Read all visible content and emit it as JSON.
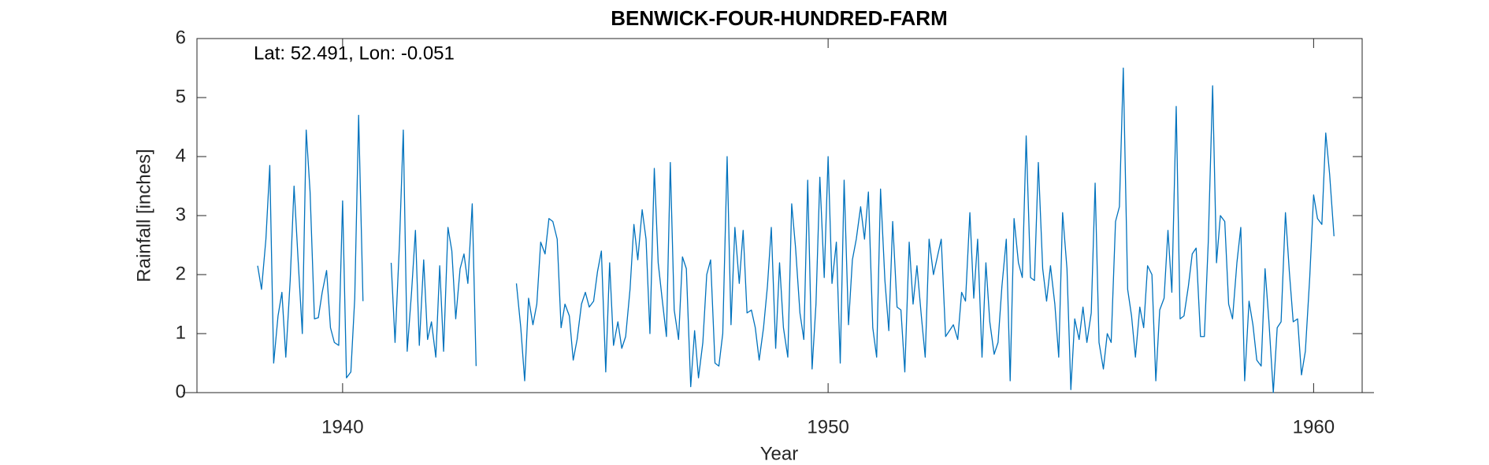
{
  "chart_data": {
    "type": "line",
    "title": "BENWICK-FOUR-HUNDRED-FARM",
    "annotation": "Lat: 52.491, Lon: -0.051",
    "xlabel": "Year",
    "ylabel": "Rainfall [inches]",
    "color": "#0072BD",
    "xlim": [
      1937,
      1961
    ],
    "xticks": [
      1940,
      1950,
      1960
    ],
    "ylim": [
      0,
      6
    ],
    "yticks": [
      0,
      1,
      2,
      3,
      4,
      5,
      6
    ],
    "x": [
      1938.25,
      1938.33,
      1938.42,
      1938.5,
      1938.58,
      1938.67,
      1938.75,
      1938.83,
      1938.92,
      1939,
      1939.08,
      1939.17,
      1939.25,
      1939.33,
      1939.42,
      1939.5,
      1939.58,
      1939.67,
      1939.75,
      1939.83,
      1939.92,
      1940,
      1940.08,
      1940.17,
      1940.25,
      1940.33,
      1940.42,
      1940.5,
      1940.58,
      1940.67,
      1940.75,
      1940.83,
      1940.92,
      1941,
      1941.08,
      1941.17,
      1941.25,
      1941.33,
      1941.42,
      1941.5,
      1941.58,
      1941.67,
      1941.75,
      1941.83,
      1941.92,
      1942,
      1942.08,
      1942.17,
      1942.25,
      1942.33,
      1942.42,
      1942.5,
      1942.58,
      1942.67,
      1942.75,
      1942.83,
      1942.92,
      1943,
      1943.08,
      1943.17,
      1943.25,
      1943.33,
      1943.42,
      1943.5,
      1943.58,
      1943.67,
      1943.75,
      1943.83,
      1943.92,
      1944,
      1944.08,
      1944.17,
      1944.25,
      1944.33,
      1944.42,
      1944.5,
      1944.58,
      1944.67,
      1944.75,
      1944.83,
      1944.92,
      1945,
      1945.08,
      1945.17,
      1945.25,
      1945.33,
      1945.42,
      1945.5,
      1945.58,
      1945.67,
      1945.75,
      1945.83,
      1945.92,
      1946,
      1946.08,
      1946.17,
      1946.25,
      1946.33,
      1946.42,
      1946.5,
      1946.58,
      1946.67,
      1946.75,
      1946.83,
      1946.92,
      1947,
      1947.08,
      1947.17,
      1947.25,
      1947.33,
      1947.42,
      1947.5,
      1947.58,
      1947.67,
      1947.75,
      1947.83,
      1947.92,
      1948,
      1948.08,
      1948.17,
      1948.25,
      1948.33,
      1948.42,
      1948.5,
      1948.58,
      1948.67,
      1948.75,
      1948.83,
      1948.92,
      1949,
      1949.08,
      1949.17,
      1949.25,
      1949.33,
      1949.42,
      1949.5,
      1949.58,
      1949.67,
      1949.75,
      1949.83,
      1949.92,
      1950,
      1950.08,
      1950.17,
      1950.25,
      1950.33,
      1950.42,
      1950.5,
      1950.58,
      1950.67,
      1950.75,
      1950.83,
      1950.92,
      1951,
      1951.08,
      1951.17,
      1951.25,
      1951.33,
      1951.42,
      1951.5,
      1951.58,
      1951.67,
      1951.75,
      1951.83,
      1951.92,
      1952,
      1952.08,
      1952.17,
      1952.25,
      1952.33,
      1952.42,
      1952.5,
      1952.58,
      1952.67,
      1952.75,
      1952.83,
      1952.92,
      1953,
      1953.08,
      1953.17,
      1953.25,
      1953.33,
      1953.42,
      1953.5,
      1953.58,
      1953.67,
      1953.75,
      1953.83,
      1953.92,
      1954,
      1954.08,
      1954.17,
      1954.25,
      1954.33,
      1954.42,
      1954.5,
      1954.58,
      1954.67,
      1954.75,
      1954.83,
      1954.92,
      1955,
      1955.08,
      1955.17,
      1955.25,
      1955.33,
      1955.42,
      1955.5,
      1955.58,
      1955.67,
      1955.75,
      1955.83,
      1955.92,
      1956,
      1956.08,
      1956.17,
      1956.25,
      1956.33,
      1956.42,
      1956.5,
      1956.58,
      1956.67,
      1956.75,
      1956.83,
      1956.92,
      1957,
      1957.08,
      1957.17,
      1957.25,
      1957.33,
      1957.42,
      1957.5,
      1957.58,
      1957.67,
      1957.75,
      1957.83,
      1957.92,
      1958,
      1958.08,
      1958.17,
      1958.25,
      1958.33,
      1958.42,
      1958.5,
      1958.58,
      1958.67,
      1958.75,
      1958.83,
      1958.92,
      1959,
      1959.08,
      1959.17,
      1959.25,
      1959.33,
      1959.42,
      1959.5,
      1959.58,
      1959.67,
      1959.75,
      1959.83,
      1959.92,
      1960,
      1960.08,
      1960.17,
      1960.25,
      1960.33,
      1960.42
    ],
    "values": [
      2.15,
      1.75,
      2.6,
      3.85,
      0.5,
      1.3,
      1.7,
      0.6,
      1.9,
      3.5,
      2.3,
      1.0,
      4.45,
      3.4,
      1.25,
      1.27,
      1.7,
      2.07,
      1.1,
      0.85,
      0.8,
      3.25,
      0.25,
      0.35,
      1.6,
      4.7,
      1.55,
      null,
      null,
      null,
      null,
      null,
      null,
      2.2,
      0.85,
      2.5,
      4.45,
      0.7,
      1.7,
      2.75,
      0.8,
      2.25,
      0.9,
      1.2,
      0.6,
      2.15,
      0.7,
      2.8,
      2.4,
      1.25,
      2.1,
      2.35,
      1.85,
      3.2,
      0.45,
      null,
      null,
      null,
      null,
      null,
      null,
      null,
      null,
      null,
      1.85,
      1.1,
      0.2,
      1.6,
      1.15,
      1.5,
      2.55,
      2.35,
      2.95,
      2.9,
      2.6,
      1.1,
      1.5,
      1.3,
      0.55,
      0.9,
      1.5,
      1.7,
      1.45,
      1.55,
      2.05,
      2.4,
      0.35,
      2.2,
      0.8,
      1.2,
      0.75,
      0.95,
      1.75,
      2.85,
      2.25,
      3.1,
      2.6,
      1.0,
      3.8,
      2.2,
      1.6,
      0.95,
      3.9,
      1.4,
      0.9,
      2.3,
      2.1,
      0.1,
      1.05,
      0.25,
      0.85,
      2.0,
      2.25,
      0.5,
      0.45,
      1.0,
      4.0,
      1.15,
      2.8,
      1.85,
      2.75,
      1.35,
      1.4,
      1.1,
      0.55,
      1.1,
      1.8,
      2.8,
      0.75,
      2.2,
      1.1,
      0.6,
      3.2,
      2.45,
      1.35,
      0.9,
      3.6,
      0.4,
      1.5,
      3.65,
      1.95,
      4.0,
      1.85,
      2.55,
      0.5,
      3.6,
      1.15,
      2.25,
      2.6,
      3.15,
      2.6,
      3.4,
      1.1,
      0.6,
      3.45,
      1.9,
      1.05,
      2.9,
      1.45,
      1.4,
      0.35,
      2.55,
      1.5,
      2.15,
      1.3,
      0.6,
      2.6,
      2.0,
      2.3,
      2.6,
      0.95,
      1.05,
      1.15,
      0.9,
      1.7,
      1.55,
      3.05,
      1.6,
      2.6,
      0.6,
      2.2,
      1.2,
      0.65,
      0.85,
      1.8,
      2.6,
      0.2,
      2.95,
      2.2,
      1.95,
      4.35,
      1.95,
      1.9,
      3.9,
      2.1,
      1.55,
      2.15,
      1.5,
      0.6,
      3.05,
      2.1,
      0.05,
      1.25,
      0.9,
      1.45,
      0.85,
      1.35,
      3.55,
      0.85,
      0.4,
      1.0,
      0.85,
      2.9,
      3.15,
      5.5,
      1.75,
      1.3,
      0.6,
      1.45,
      1.1,
      2.15,
      2.0,
      0.2,
      1.4,
      1.6,
      2.75,
      1.7,
      4.85,
      1.25,
      1.3,
      1.8,
      2.35,
      2.45,
      0.95,
      0.95,
      2.55,
      5.2,
      2.2,
      3.0,
      2.9,
      1.5,
      1.25,
      2.2,
      2.8,
      0.2,
      1.55,
      1.15,
      0.55,
      0.45,
      2.1,
      1.2,
      0.0,
      1.1,
      1.2,
      3.05,
      2.05,
      1.2,
      1.25,
      0.3,
      0.7,
      1.95,
      3.35,
      2.95,
      2.85,
      4.4,
      3.7,
      2.65
    ]
  }
}
